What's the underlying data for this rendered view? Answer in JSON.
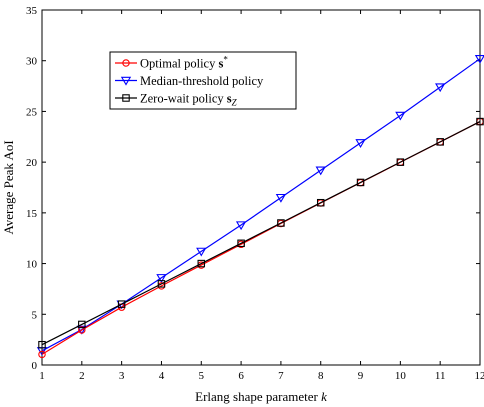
{
  "chart_data": {
    "type": "line",
    "title": "",
    "xlabel": "Erlang shape parameter k",
    "ylabel": "Average Peak AoI",
    "x": [
      1,
      2,
      3,
      4,
      5,
      6,
      7,
      8,
      9,
      10,
      11,
      12
    ],
    "xlim": [
      1,
      12
    ],
    "ylim": [
      0,
      35
    ],
    "xticks": [
      "1",
      "2",
      "3",
      "4",
      "5",
      "6",
      "7",
      "8",
      "9",
      "10",
      "11",
      "12"
    ],
    "yticks": [
      "0",
      "5",
      "10",
      "15",
      "20",
      "25",
      "30",
      "35"
    ],
    "grid": false,
    "legend_position": "upper-left inside",
    "series": [
      {
        "name": "Optimal policy s*",
        "color": "#ff0000",
        "marker": "circle",
        "values": [
          1.05,
          3.45,
          5.7,
          7.8,
          9.85,
          11.9,
          13.95,
          15.97,
          17.98,
          19.99,
          21.99,
          24.0
        ]
      },
      {
        "name": "Median-threshold policy",
        "color": "#0000ff",
        "marker": "triangle-down",
        "values": [
          1.4,
          3.5,
          6.0,
          8.6,
          11.2,
          13.8,
          16.5,
          19.2,
          21.9,
          24.6,
          27.4,
          30.2
        ]
      },
      {
        "name": "Zero-wait policy s_Z",
        "color": "#000000",
        "marker": "square",
        "values": [
          2.0,
          4.0,
          6.0,
          8.0,
          10.0,
          12.0,
          14.0,
          16.0,
          18.0,
          20.0,
          22.0,
          24.0
        ]
      }
    ]
  }
}
